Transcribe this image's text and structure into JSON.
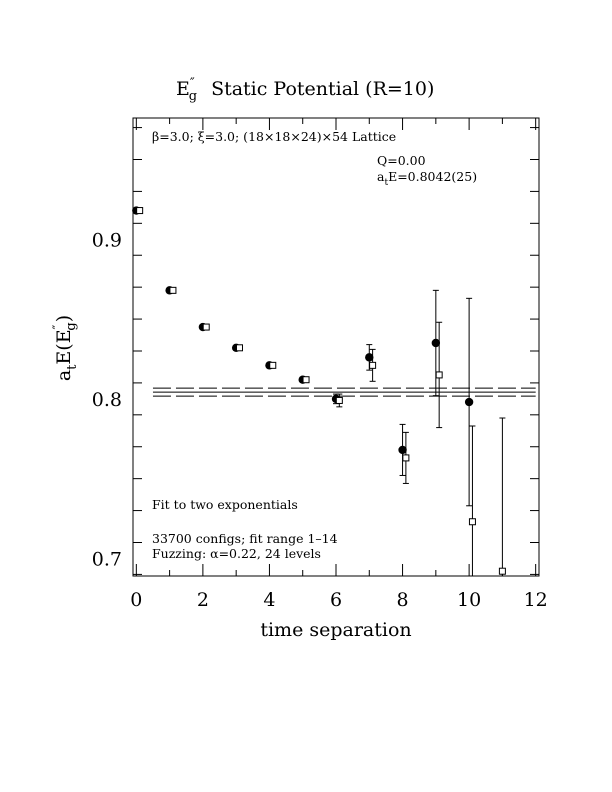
{
  "chart_data": {
    "type": "scatter",
    "title": {
      "base": "E",
      "sup": "″",
      "sub": "g",
      "rest": "Static Potential (R=10)"
    },
    "ylabel": {
      "a": "a",
      "a_sub": "t",
      "E": "E(E",
      "sup": "″",
      "sub": "g",
      "close": ")"
    },
    "xlabel": "time separation",
    "xlim": [
      -0.1,
      12.1
    ],
    "ylim": [
      0.689,
      0.976
    ],
    "x_ticks": [
      0,
      2,
      4,
      6,
      8,
      10,
      12
    ],
    "x_tick_labels": [
      "0",
      "2",
      "4",
      "6",
      "8",
      "10",
      "12"
    ],
    "y_ticks": [
      0.7,
      0.8,
      0.9
    ],
    "y_tick_labels": [
      "0.7",
      "0.8",
      "0.9"
    ],
    "grid": false,
    "annotations": {
      "lattice": "β=3.0; ξ=3.0; (18×18×24)×54 Lattice",
      "q": "Q=0.00",
      "energy_prefix": "a",
      "energy_sub": "t",
      "energy_rest": "E=0.8042(25)",
      "fit": "Fit to two exponentials",
      "configs": "33700 configs; fit range 1–14",
      "fuzzing": "Fuzzing: α=0.22, 24 levels"
    },
    "fit_line": {
      "x_range": [
        0.5,
        12.0
      ],
      "center": 0.8042,
      "error": 0.0025
    },
    "series": [
      {
        "marker": "filled-circle",
        "points": [
          {
            "x": 0,
            "y": 0.918,
            "err": 0.0
          },
          {
            "x": 1,
            "y": 0.868,
            "err": 0.0
          },
          {
            "x": 2,
            "y": 0.845,
            "err": 0.0
          },
          {
            "x": 3,
            "y": 0.832,
            "err": 0.0
          },
          {
            "x": 4,
            "y": 0.821,
            "err": 0.0
          },
          {
            "x": 5,
            "y": 0.812,
            "err": 0.0
          },
          {
            "x": 6,
            "y": 0.8,
            "err": 0.003
          },
          {
            "x": 7,
            "y": 0.826,
            "err": 0.008
          },
          {
            "x": 8,
            "y": 0.768,
            "err": 0.016
          },
          {
            "x": 9,
            "y": 0.835,
            "err": 0.033
          },
          {
            "x": 10,
            "y": 0.798,
            "err": 0.065
          }
        ]
      },
      {
        "marker": "open-square",
        "points": [
          {
            "x": 0.1,
            "y": 0.918,
            "err": 0.0
          },
          {
            "x": 1.1,
            "y": 0.868,
            "err": 0.0
          },
          {
            "x": 2.1,
            "y": 0.845,
            "err": 0.0
          },
          {
            "x": 3.1,
            "y": 0.832,
            "err": 0.0
          },
          {
            "x": 4.1,
            "y": 0.821,
            "err": 0.0
          },
          {
            "x": 5.1,
            "y": 0.812,
            "err": 0.0
          },
          {
            "x": 6.1,
            "y": 0.799,
            "err": 0.004
          },
          {
            "x": 7.1,
            "y": 0.821,
            "err": 0.01
          },
          {
            "x": 8.1,
            "y": 0.763,
            "err": 0.016
          },
          {
            "x": 9.1,
            "y": 0.815,
            "err": 0.033
          },
          {
            "x": 10.1,
            "y": 0.723,
            "err": 0.06
          },
          {
            "x": 11.0,
            "y": 0.692,
            "err": 0.096
          }
        ]
      }
    ]
  }
}
